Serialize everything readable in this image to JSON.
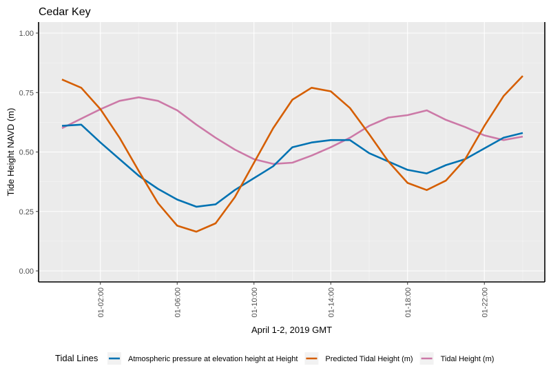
{
  "chart_data": {
    "type": "line",
    "title": "Cedar Key",
    "xlabel": "April 1-2, 2019 GMT",
    "ylabel": "Tide Height NAVD (m)",
    "x": [
      "00:00",
      "01:00",
      "02:00",
      "03:00",
      "04:00",
      "05:00",
      "06:00",
      "07:00",
      "08:00",
      "09:00",
      "10:00",
      "11:00",
      "12:00",
      "13:00",
      "14:00",
      "15:00",
      "16:00",
      "17:00",
      "18:00",
      "19:00",
      "20:00",
      "21:00",
      "22:00",
      "23:00",
      "24:00"
    ],
    "xlim": [
      "00:00",
      "24:00"
    ],
    "x_ticks": [
      "01-02:00",
      "01-06:00",
      "01-10:00",
      "01-14:00",
      "01-18:00",
      "01-22:00"
    ],
    "ylim": [
      0,
      1
    ],
    "y_ticks": [
      "0.00",
      "0.25",
      "0.50",
      "0.75",
      "1.00"
    ],
    "grid": true,
    "legend_title": "Tidal Lines",
    "legend_position": "bottom",
    "series": [
      {
        "name": "Atmospheric pressure at elevation height at Height",
        "color": "#0072b2",
        "values": [
          0.61,
          0.615,
          0.54,
          0.47,
          0.4,
          0.345,
          0.3,
          0.27,
          0.28,
          0.34,
          0.39,
          0.44,
          0.52,
          0.54,
          0.55,
          0.55,
          0.495,
          0.46,
          0.425,
          0.41,
          0.445,
          0.47,
          0.515,
          0.56,
          0.58
        ]
      },
      {
        "name": "Predicted Tidal Height (m)",
        "color": "#d55e00",
        "values": [
          0.805,
          0.77,
          0.68,
          0.56,
          0.42,
          0.285,
          0.19,
          0.165,
          0.2,
          0.31,
          0.455,
          0.6,
          0.72,
          0.77,
          0.755,
          0.685,
          0.575,
          0.46,
          0.37,
          0.34,
          0.38,
          0.47,
          0.61,
          0.735,
          0.82
        ]
      },
      {
        "name": "Tidal Height (m)",
        "color": "#cc79a7",
        "values": [
          0.6,
          0.64,
          0.68,
          0.715,
          0.73,
          0.715,
          0.675,
          0.615,
          0.56,
          0.51,
          0.47,
          0.45,
          0.455,
          0.485,
          0.52,
          0.56,
          0.61,
          0.645,
          0.655,
          0.675,
          0.635,
          0.605,
          0.57,
          0.55,
          0.565
        ]
      }
    ]
  }
}
